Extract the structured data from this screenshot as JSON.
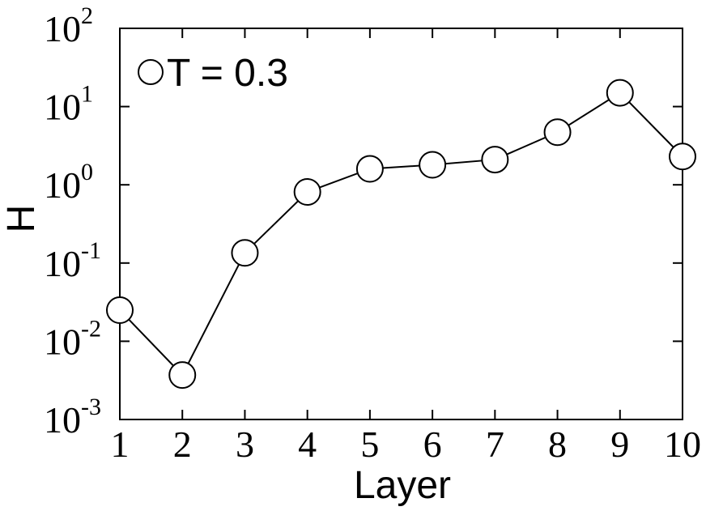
{
  "chart_data": {
    "type": "line",
    "xlabel": "Layer",
    "ylabel": "H",
    "log_y": true,
    "x": [
      1,
      2,
      3,
      4,
      5,
      6,
      7,
      8,
      9,
      10
    ],
    "series": [
      {
        "name": "T = 0.3",
        "color": "#000000",
        "values": [
          0.025,
          0.0037,
          0.135,
          0.81,
          1.6,
          1.8,
          2.1,
          4.7,
          15,
          2.3
        ]
      }
    ],
    "xlim": [
      1,
      10
    ],
    "xticks": [
      1,
      2,
      3,
      4,
      5,
      6,
      7,
      8,
      9,
      10
    ],
    "ylim": [
      0.001,
      100
    ],
    "yticks": [
      {
        "value": 0.001,
        "label": "10",
        "exponent": "-3"
      },
      {
        "value": 0.01,
        "label": "10",
        "exponent": "-2"
      },
      {
        "value": 0.1,
        "label": "10",
        "exponent": "-1"
      },
      {
        "value": 1,
        "label": "10",
        "exponent": "0"
      },
      {
        "value": 10,
        "label": "10",
        "exponent": "1"
      },
      {
        "value": 100,
        "label": "10",
        "exponent": "2"
      }
    ],
    "legend": "upper left"
  }
}
